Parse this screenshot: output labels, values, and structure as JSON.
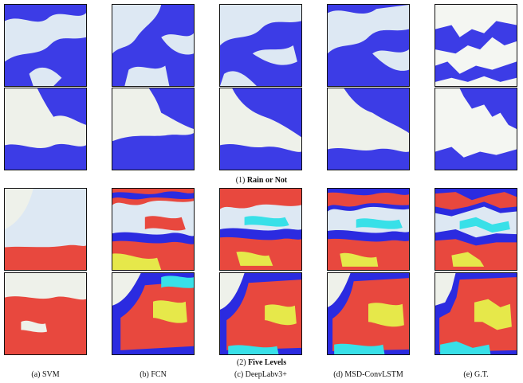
{
  "figure": {
    "sections": [
      {
        "number": "(1)",
        "label": "Rain or Not"
      },
      {
        "number": "(2)",
        "label": "Five Levels"
      }
    ],
    "columns": [
      "(a) SVM",
      "(b) FCN",
      "(c) DeepLabv3+",
      "(d) MSD-ConvLSTM",
      "(e) G.T."
    ],
    "colors": {
      "rain": "#3c3ce6",
      "no_rain_sky": "#dde8f3",
      "map_land": "#eef1ea",
      "level_cyan": "#38e0e8",
      "level_blue": "#2b2be0",
      "level_yellow": "#e6e84a",
      "level_red": "#e8483e"
    }
  }
}
